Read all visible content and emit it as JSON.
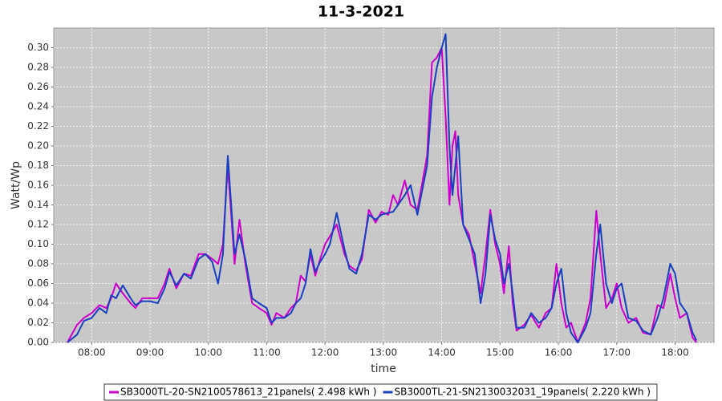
{
  "chart_data": {
    "type": "line",
    "title": "11-3-2021",
    "x_label": "time",
    "y_label": "Watt/Wp",
    "x": [
      "07:35",
      "07:45",
      "07:52",
      "08:00",
      "08:08",
      "08:15",
      "08:20",
      "08:25",
      "08:32",
      "08:40",
      "08:45",
      "08:52",
      "09:00",
      "09:08",
      "09:15",
      "09:20",
      "09:27",
      "09:35",
      "09:42",
      "09:50",
      "09:57",
      "10:04",
      "10:10",
      "10:15",
      "10:20",
      "10:27",
      "10:32",
      "10:38",
      "10:45",
      "10:52",
      "11:00",
      "11:05",
      "11:10",
      "11:18",
      "11:25",
      "11:30",
      "11:35",
      "11:40",
      "11:45",
      "11:50",
      "11:55",
      "12:00",
      "12:05",
      "12:12",
      "12:20",
      "12:25",
      "12:32",
      "12:38",
      "12:45",
      "12:52",
      "12:58",
      "13:05",
      "13:10",
      "13:15",
      "13:22",
      "13:28",
      "13:35",
      "13:45",
      "13:50",
      "13:55",
      "14:00",
      "14:04",
      "14:08",
      "14:11",
      "14:14",
      "14:17",
      "14:22",
      "14:28",
      "14:34",
      "14:40",
      "14:45",
      "14:50",
      "14:55",
      "15:00",
      "15:04",
      "15:09",
      "15:13",
      "15:17",
      "15:25",
      "15:32",
      "15:40",
      "15:47",
      "15:53",
      "15:58",
      "16:03",
      "16:08",
      "16:13",
      "16:20",
      "16:28",
      "16:33",
      "16:39",
      "16:43",
      "16:49",
      "16:55",
      "17:00",
      "17:05",
      "17:12",
      "17:20",
      "17:27",
      "17:35",
      "17:42",
      "17:48",
      "17:55",
      "18:00",
      "18:05",
      "18:12",
      "18:18",
      "18:22"
    ],
    "series": [
      {
        "name": "SB3000TL-20-SN2100578613_21panels( 2.498 kWh )",
        "color": "#cc00cc",
        "values": [
          0.0,
          0.018,
          0.025,
          0.03,
          0.038,
          0.035,
          0.045,
          0.06,
          0.05,
          0.04,
          0.035,
          0.045,
          0.045,
          0.045,
          0.06,
          0.075,
          0.055,
          0.07,
          0.068,
          0.09,
          0.09,
          0.085,
          0.08,
          0.1,
          0.18,
          0.08,
          0.125,
          0.08,
          0.04,
          0.035,
          0.03,
          0.018,
          0.03,
          0.025,
          0.035,
          0.04,
          0.068,
          0.062,
          0.09,
          0.068,
          0.085,
          0.1,
          0.108,
          0.12,
          0.09,
          0.078,
          0.073,
          0.085,
          0.135,
          0.122,
          0.133,
          0.13,
          0.15,
          0.14,
          0.165,
          0.14,
          0.135,
          0.19,
          0.285,
          0.29,
          0.3,
          0.23,
          0.14,
          0.2,
          0.215,
          0.15,
          0.12,
          0.11,
          0.08,
          0.05,
          0.09,
          0.135,
          0.1,
          0.08,
          0.05,
          0.098,
          0.04,
          0.012,
          0.018,
          0.028,
          0.015,
          0.03,
          0.035,
          0.08,
          0.04,
          0.015,
          0.02,
          0.0,
          0.02,
          0.045,
          0.134,
          0.09,
          0.035,
          0.045,
          0.06,
          0.035,
          0.02,
          0.025,
          0.01,
          0.008,
          0.038,
          0.035,
          0.07,
          0.045,
          0.025,
          0.03,
          0.005,
          0.0
        ]
      },
      {
        "name": "SB3000TL-21-SN2130032031_19panels( 2.220 kWh )",
        "color": "#1a3fbf",
        "values": [
          0.0,
          0.008,
          0.022,
          0.025,
          0.035,
          0.03,
          0.048,
          0.045,
          0.058,
          0.045,
          0.038,
          0.042,
          0.042,
          0.04,
          0.055,
          0.072,
          0.058,
          0.07,
          0.065,
          0.085,
          0.09,
          0.082,
          0.06,
          0.09,
          0.19,
          0.09,
          0.11,
          0.085,
          0.045,
          0.04,
          0.035,
          0.02,
          0.025,
          0.025,
          0.03,
          0.04,
          0.045,
          0.06,
          0.095,
          0.072,
          0.082,
          0.09,
          0.1,
          0.132,
          0.095,
          0.075,
          0.07,
          0.09,
          0.13,
          0.125,
          0.13,
          0.132,
          0.133,
          0.14,
          0.15,
          0.16,
          0.13,
          0.18,
          0.25,
          0.28,
          0.3,
          0.314,
          0.2,
          0.15,
          0.18,
          0.21,
          0.12,
          0.105,
          0.09,
          0.04,
          0.07,
          0.13,
          0.105,
          0.09,
          0.06,
          0.08,
          0.05,
          0.015,
          0.015,
          0.03,
          0.02,
          0.025,
          0.035,
          0.06,
          0.075,
          0.03,
          0.01,
          0.0,
          0.015,
          0.03,
          0.09,
          0.12,
          0.06,
          0.04,
          0.055,
          0.06,
          0.025,
          0.022,
          0.012,
          0.008,
          0.025,
          0.045,
          0.08,
          0.07,
          0.04,
          0.03,
          0.01,
          0.002
        ]
      }
    ],
    "xlim": [
      "07:21",
      "18:40"
    ],
    "xticks": [
      "08:00",
      "09:00",
      "10:00",
      "11:00",
      "12:00",
      "13:00",
      "14:00",
      "15:00",
      "16:00",
      "17:00",
      "18:00"
    ],
    "ylim": [
      0,
      0.32
    ],
    "yticks": [
      {
        "value": 0,
        "label": "0.00"
      },
      {
        "value": 0.02,
        "label": "0.02"
      },
      {
        "value": 0.04,
        "label": "0.04"
      },
      {
        "value": 0.06,
        "label": "0.06"
      },
      {
        "value": 0.08,
        "label": "0.08"
      },
      {
        "value": 0.1,
        "label": "0.10"
      },
      {
        "value": 0.12,
        "label": "0.12"
      },
      {
        "value": 0.14,
        "label": "0.14"
      },
      {
        "value": 0.16,
        "label": "0.16"
      },
      {
        "value": 0.18,
        "label": "0.18"
      },
      {
        "value": 0.2,
        "label": "0.20"
      },
      {
        "value": 0.22,
        "label": "0.22"
      },
      {
        "value": 0.24,
        "label": "0.24"
      },
      {
        "value": 0.26,
        "label": "0.26"
      },
      {
        "value": 0.28,
        "label": "0.28"
      },
      {
        "value": 0.3,
        "label": "0.30"
      }
    ],
    "grid": true,
    "legend": "bottom"
  }
}
